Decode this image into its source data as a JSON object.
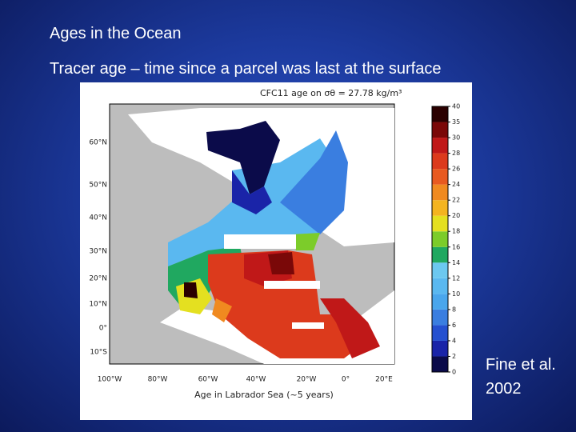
{
  "slide": {
    "title": "Ages in the Ocean",
    "subtitle": "Tracer age – time since a parcel was last at the surface",
    "citation": [
      "Fine et al.",
      "2002"
    ],
    "figure": {
      "title": "CFC11 age on σθ = 27.78 kg/m³",
      "xlabel": "Age in Labrador Sea (~5 years)",
      "lat_labels": [
        "60°N",
        "50°N",
        "40°N",
        "30°N",
        "20°N",
        "10°N",
        "0°",
        "10°S"
      ],
      "lon_labels": [
        "100°W",
        "80°W",
        "60°W",
        "40°W",
        "20°W",
        "0°",
        "20°E"
      ],
      "colorbar": {
        "ticks": [
          0,
          2,
          4,
          6,
          8,
          10,
          12,
          14,
          16,
          18,
          20,
          22,
          24,
          26,
          28,
          30,
          35,
          40
        ],
        "colors": [
          "#0b0b4a",
          "#1a24a8",
          "#2550d0",
          "#3a7ee0",
          "#4aa6ec",
          "#5ab8f0",
          "#6cc8f0",
          "#20a860",
          "#7ccc2a",
          "#e4e020",
          "#f4b420",
          "#f08a20",
          "#e85a20",
          "#dc3a1c",
          "#c01818",
          "#7a0808",
          "#2a0000"
        ]
      }
    }
  }
}
